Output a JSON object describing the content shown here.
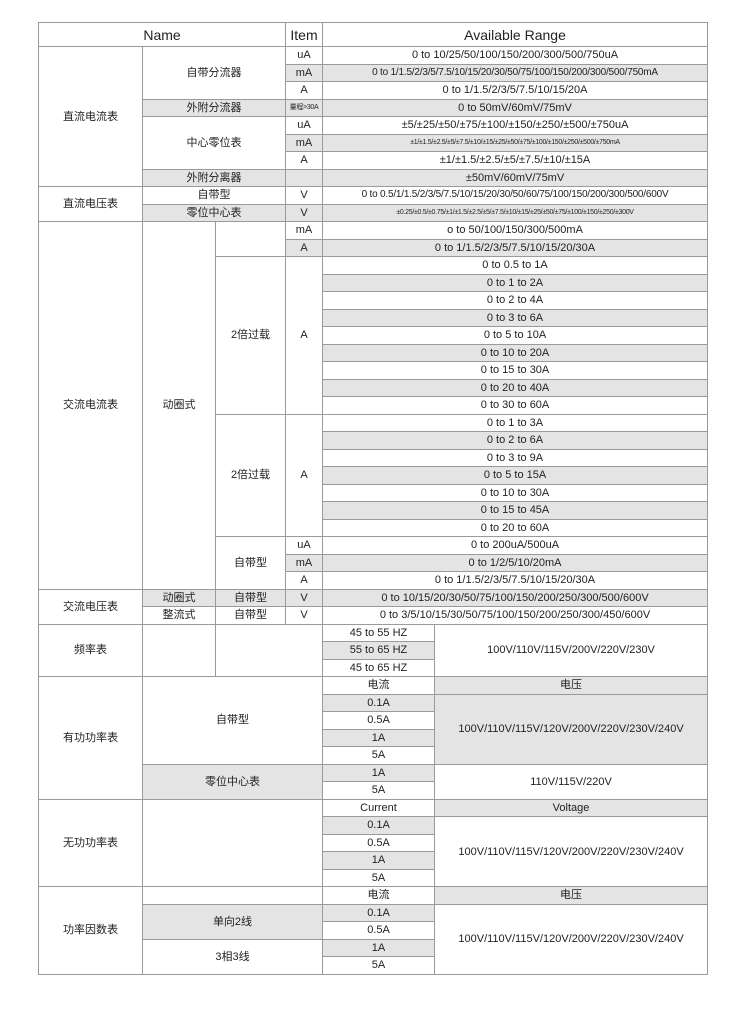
{
  "header": {
    "name": "Name",
    "item": "Item",
    "range": "Available Range"
  },
  "dc_current": {
    "name": "直流电流表",
    "built_in_shunt": {
      "label": "自带分流器",
      "rows": [
        {
          "item": "uA",
          "range": "0 to 10/25/50/100/150/200/300/500/750uA"
        },
        {
          "item": "mA",
          "range": "0 to 1/1.5/2/3/5/7.5/10/15/20/30/50/75/100/150/200/300/500/750mA"
        },
        {
          "item": "A",
          "range": "0 to 1/1.5/2/3/5/7.5/10/15/20A"
        }
      ]
    },
    "external_shunt": {
      "label": "外附分流器",
      "item": "量程>30A",
      "range": "0 to 50mV/60mV/75mV"
    },
    "center_zero": {
      "label": "中心零位表",
      "rows": [
        {
          "item": "uA",
          "range": "±5/±25/±50/±75/±100/±150/±250/±500/±750uA"
        },
        {
          "item": "mA",
          "range": "±1/±1.5/±2.5/±5/±7.5/±10/±15/±25/±50/±75/±100/±150/±250/±500/±750mA"
        },
        {
          "item": "A",
          "range": "±1/±1.5/±2.5/±5/±7.5/±10/±15A"
        }
      ]
    },
    "external_divider": {
      "label": "外附分离器",
      "range": "±50mV/60mV/75mV"
    }
  },
  "dc_voltage": {
    "name": "直流电压表",
    "rows": [
      {
        "label": "自带型",
        "item": "V",
        "range": "0 to 0.5/1/1.5/2/3/5/7.5/10/15/20/30/50/60/75/100/150/200/300/500/600V"
      },
      {
        "label": "零位中心表",
        "item": "V",
        "range": "±0.25/±0.5/±0.75/±1/±1.5/±2.5/±5/±7.5/±10/±15/±25/±50/±75/±100/±150/±250/±300V"
      }
    ]
  },
  "ac_current": {
    "name": "交流电流表",
    "type": "动圈式",
    "rows": [
      {
        "item": "mA",
        "range": "o to 50/100/150/300/500mA"
      },
      {
        "item": "A",
        "range": "0 to 1/1.5/2/3/5/7.5/10/15/20/30A"
      }
    ],
    "overload_1": {
      "label": "2倍过载",
      "item": "A",
      "ranges": [
        "0 to 0.5 to 1A",
        "0 to 1 to 2A",
        "0 to 2 to 4A",
        "0 to 3 to 6A",
        "0 to 5 to 10A",
        "0 to 10 to 20A",
        "0 to 15 to 30A",
        "0 to 20 to 40A",
        "0 to 30 to 60A"
      ]
    },
    "overload_2": {
      "label": "2倍过载",
      "item": "A",
      "ranges": [
        "0 to 1 to 3A",
        "0 to 2 to 6A",
        "0 to 3 to 9A",
        "0 to 5 to 15A",
        "0 to 10 to 30A",
        "0 to 15 to 45A",
        "0 to 20 to 60A"
      ]
    },
    "built_in": {
      "label": "自带型",
      "rows": [
        {
          "item": "uA",
          "range": "0 to 200uA/500uA"
        },
        {
          "item": "mA",
          "range": "0 to 1/2/5/10/20mA"
        },
        {
          "item": "A",
          "range": "0 to 1/1.5/2/3/5/7.5/10/15/20/30A"
        }
      ]
    }
  },
  "ac_voltage": {
    "name": "交流电压表",
    "rows": [
      {
        "type": "动圈式",
        "label": "自带型",
        "item": "V",
        "range": "0 to 10/15/20/30/50/75/100/150/200/250/300/500/600V"
      },
      {
        "type": "整流式",
        "label": "自带型",
        "item": "V",
        "range": "0 to 3/5/10/15/30/50/75/100/150/200/250/300/450/600V"
      }
    ]
  },
  "frequency": {
    "name": "频率表",
    "ranges": [
      "45 to 55 HZ",
      "55 to 65 HZ",
      "45 to 65 HZ"
    ],
    "voltage": "100V/110V/115V/200V/220V/230V"
  },
  "active_power": {
    "name": "有功功率表",
    "current_header": "电流",
    "voltage_header": "电压",
    "built_in": {
      "label": "自带型",
      "currents": [
        "0.1A",
        "0.5A",
        "1A",
        "5A"
      ],
      "voltage": "100V/110V/115V/120V/200V/220V/230V/240V"
    },
    "center_zero": {
      "label": "零位中心表",
      "currents": [
        "1A",
        "5A"
      ],
      "voltage": "110V/115V/220V"
    }
  },
  "reactive_power": {
    "name": "无功功率表",
    "current_header": "Current",
    "voltage_header": "Voltage",
    "currents": [
      "0.1A",
      "0.5A",
      "1A",
      "5A"
    ],
    "voltage": "100V/110V/115V/120V/200V/220V/230V/240V"
  },
  "power_factor": {
    "name": "功率因数表",
    "current_header": "电流",
    "voltage_header": "电压",
    "single_phase": "单向2线",
    "three_phase": "3相3线",
    "currents": [
      "0.1A",
      "0.5A",
      "1A",
      "5A"
    ],
    "voltage": "100V/110V/115V/120V/200V/220V/230V/240V"
  }
}
